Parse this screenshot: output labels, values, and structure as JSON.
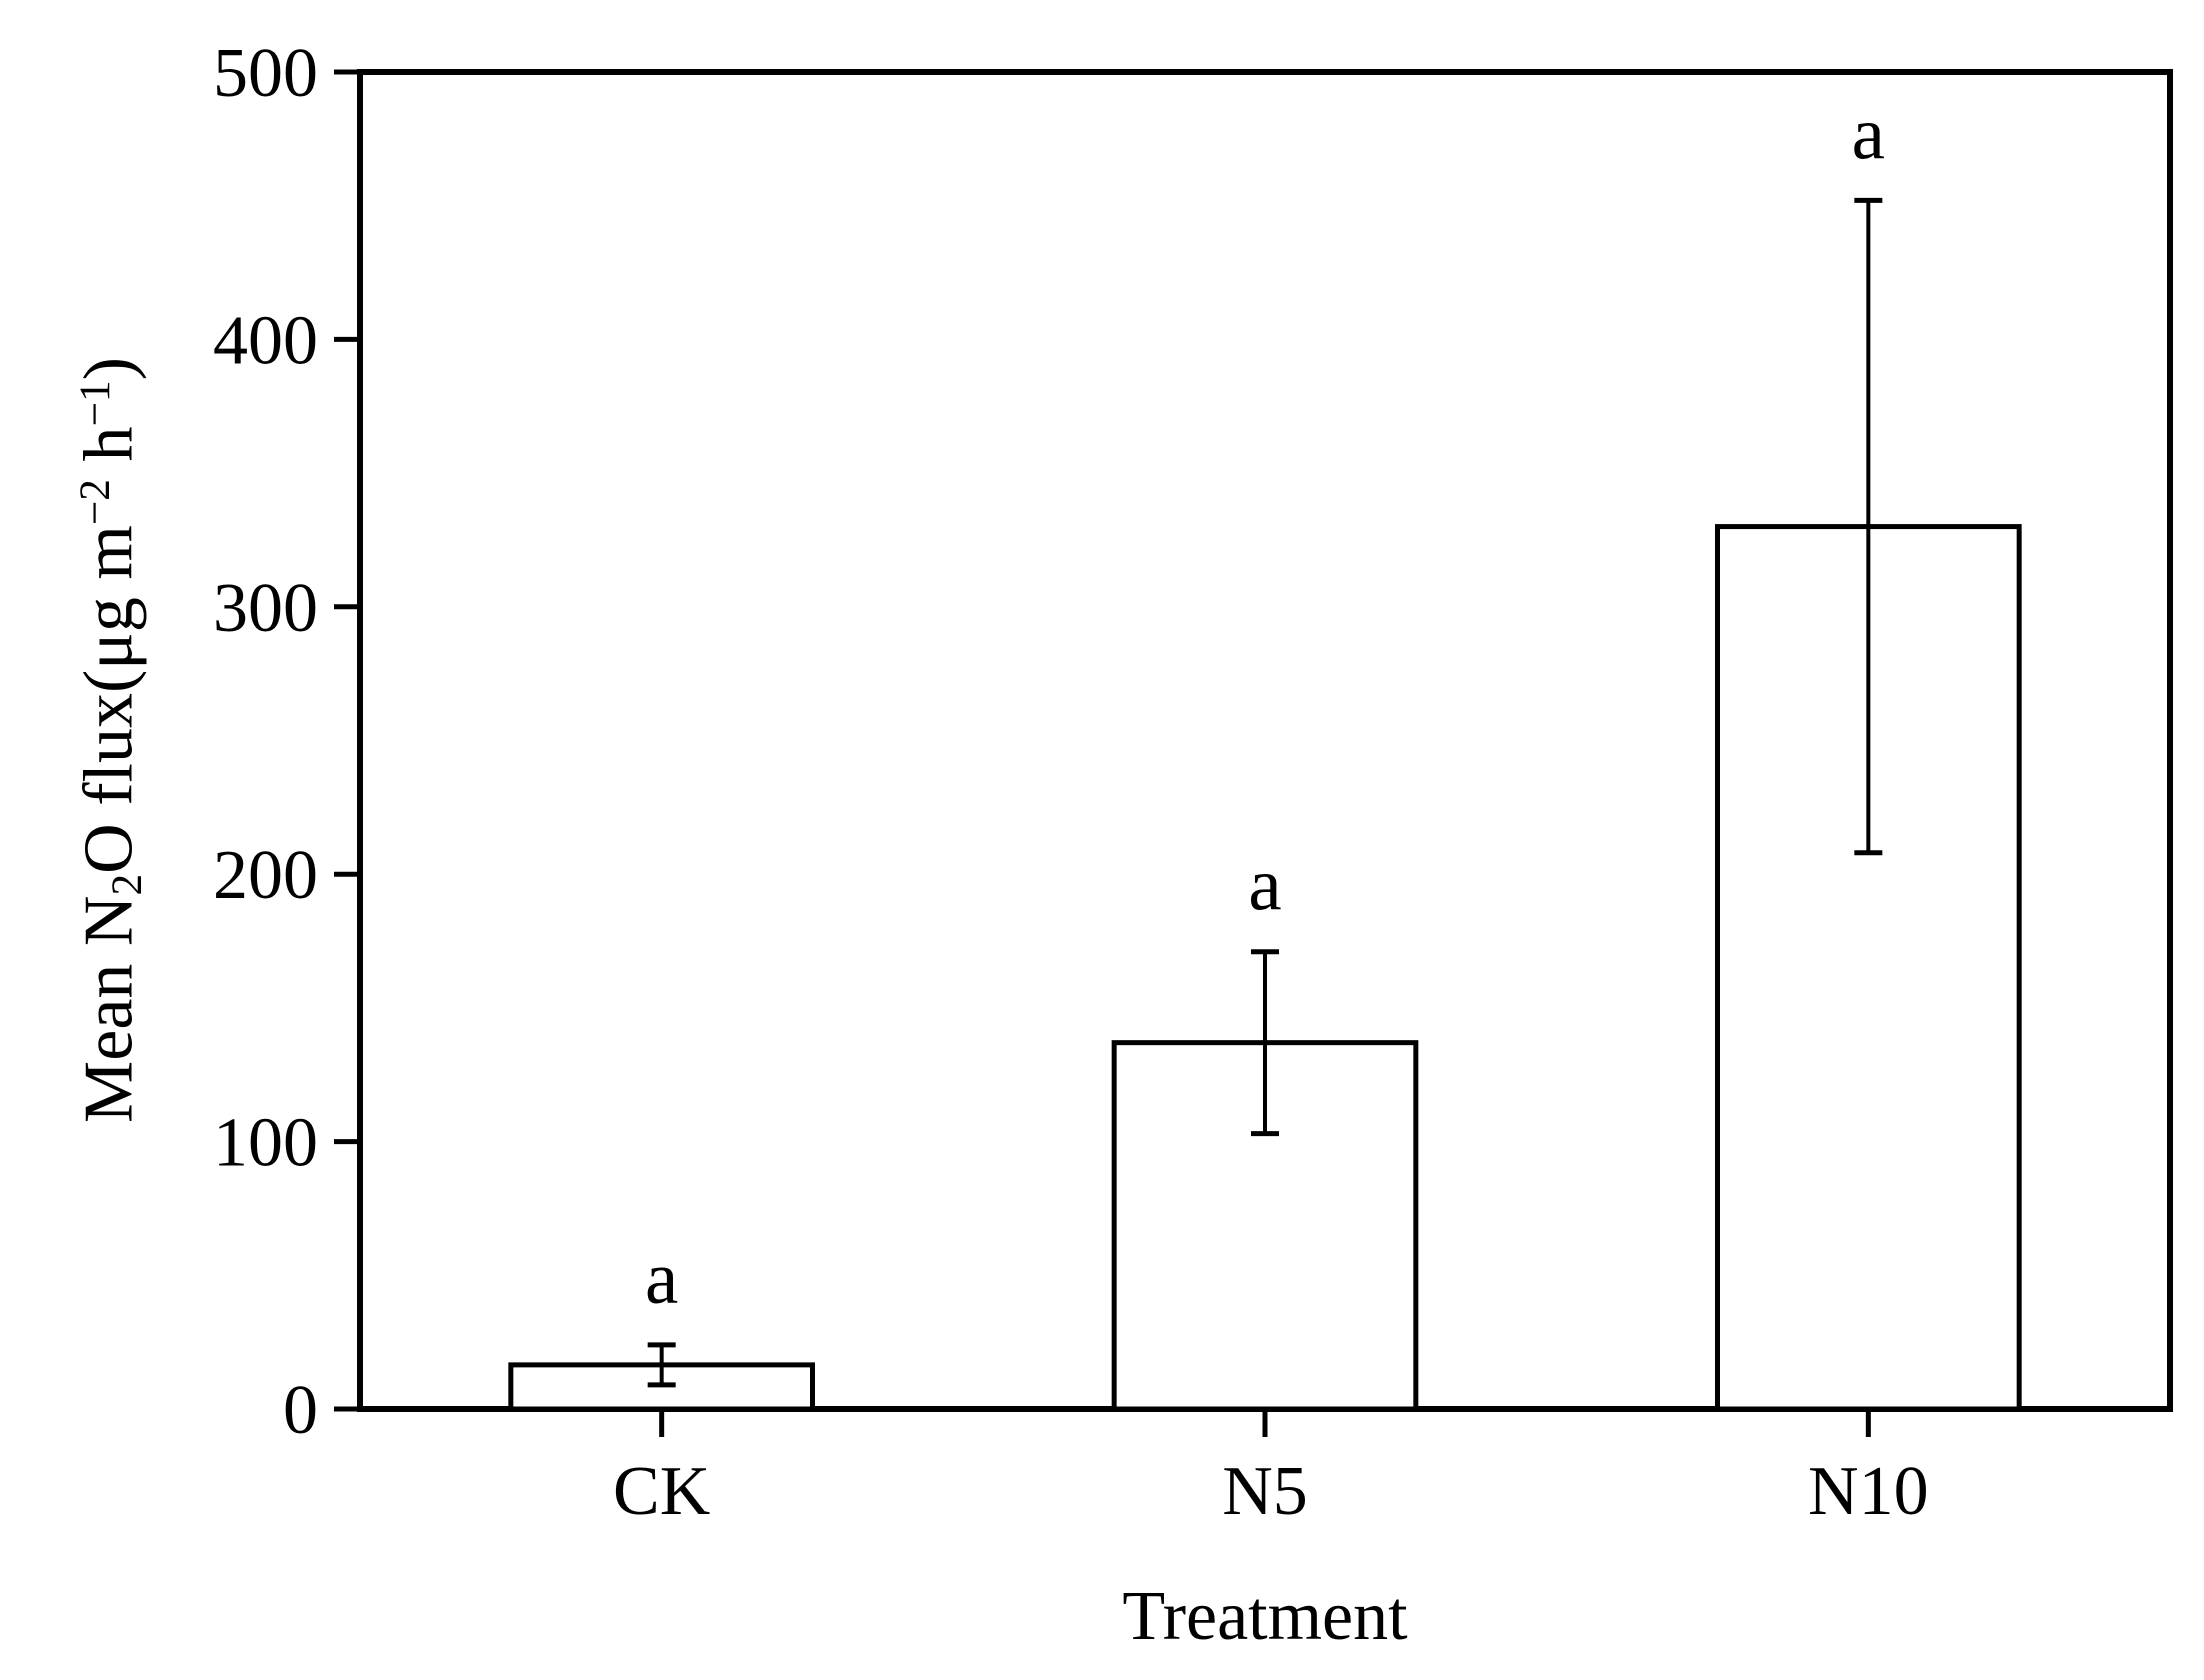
{
  "figure": {
    "background": "#ffffff",
    "foreground": "#000000"
  },
  "chart_data": {
    "type": "bar",
    "title": "",
    "xlabel": "Treatment",
    "ylabel": "Mean N₂O flux(μg m⁻² h⁻¹)",
    "ylabel_parts": [
      {
        "text": "Mean N",
        "script": "normal"
      },
      {
        "text": "2",
        "script": "sub"
      },
      {
        "text": "O flux(μg m",
        "script": "normal"
      },
      {
        "text": "−2",
        "script": "sup"
      },
      {
        "text": " h",
        "script": "normal"
      },
      {
        "text": "−1",
        "script": "sup"
      },
      {
        "text": ")",
        "script": "normal"
      }
    ],
    "categories": [
      "CK",
      "N5",
      "N10"
    ],
    "values": [
      16.5,
      137,
      330
    ],
    "error_bars": [
      7.5,
      34,
      122
    ],
    "sig_letters": [
      "a",
      "a",
      "a"
    ],
    "ylim": [
      0,
      500
    ],
    "yticks": [
      0,
      100,
      200,
      300,
      400,
      500
    ],
    "grid": false,
    "legend": "none",
    "bar_fill": "#ffffff",
    "line_color": "#000000"
  }
}
